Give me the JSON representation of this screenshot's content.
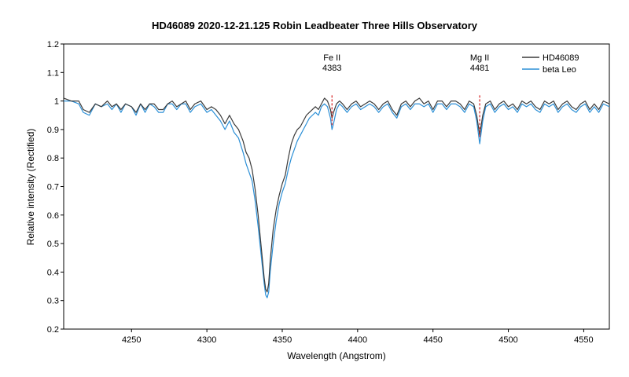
{
  "chart_data": {
    "type": "line",
    "title": "HD46089  2020-12-21.125  Robin  Leadbeater  Three Hills Observatory",
    "xlabel": "Wavelength (Angstrom)",
    "ylabel": "Relative intensity (Rectified)",
    "xlim": [
      4205,
      4567
    ],
    "ylim": [
      0.2,
      1.2
    ],
    "xticks": [
      4250,
      4300,
      4350,
      4400,
      4450,
      4500,
      4550
    ],
    "yticks": [
      0.2,
      0.3,
      0.4,
      0.5,
      0.6,
      0.7,
      0.8,
      0.9,
      1,
      1.1,
      1.2
    ],
    "grid": false,
    "legend_position": "top-right",
    "annotations": [
      {
        "line1": "Fe II",
        "line2": "4383",
        "x": 4383,
        "color": "#d62020"
      },
      {
        "line1": "Mg II",
        "line2": "4481",
        "x": 4481,
        "color": "#d62020"
      }
    ],
    "series": [
      {
        "name": "HD46089",
        "color": "#3a3a3a",
        "points": [
          [
            4205,
            1.01
          ],
          [
            4210,
            1.0
          ],
          [
            4215,
            1.0
          ],
          [
            4218,
            0.97
          ],
          [
            4222,
            0.96
          ],
          [
            4226,
            0.99
          ],
          [
            4230,
            0.98
          ],
          [
            4234,
            1.0
          ],
          [
            4237,
            0.98
          ],
          [
            4240,
            0.99
          ],
          [
            4243,
            0.97
          ],
          [
            4246,
            0.99
          ],
          [
            4250,
            0.98
          ],
          [
            4253,
            0.96
          ],
          [
            4256,
            0.99
          ],
          [
            4259,
            0.97
          ],
          [
            4262,
            0.99
          ],
          [
            4265,
            0.99
          ],
          [
            4268,
            0.97
          ],
          [
            4271,
            0.97
          ],
          [
            4274,
            0.99
          ],
          [
            4277,
            1.0
          ],
          [
            4280,
            0.98
          ],
          [
            4283,
            0.99
          ],
          [
            4286,
            1.0
          ],
          [
            4289,
            0.97
          ],
          [
            4292,
            0.99
          ],
          [
            4296,
            1.0
          ],
          [
            4300,
            0.97
          ],
          [
            4303,
            0.98
          ],
          [
            4306,
            0.97
          ],
          [
            4309,
            0.95
          ],
          [
            4312,
            0.92
          ],
          [
            4315,
            0.95
          ],
          [
            4318,
            0.92
          ],
          [
            4321,
            0.9
          ],
          [
            4324,
            0.86
          ],
          [
            4326,
            0.82
          ],
          [
            4328,
            0.8
          ],
          [
            4330,
            0.76
          ],
          [
            4332,
            0.69
          ],
          [
            4334,
            0.6
          ],
          [
            4336,
            0.49
          ],
          [
            4338,
            0.38
          ],
          [
            4339,
            0.34
          ],
          [
            4340,
            0.33
          ],
          [
            4341,
            0.36
          ],
          [
            4342,
            0.44
          ],
          [
            4344,
            0.55
          ],
          [
            4346,
            0.62
          ],
          [
            4348,
            0.67
          ],
          [
            4350,
            0.71
          ],
          [
            4352,
            0.74
          ],
          [
            4354,
            0.8
          ],
          [
            4356,
            0.85
          ],
          [
            4358,
            0.88
          ],
          [
            4360,
            0.9
          ],
          [
            4362,
            0.91
          ],
          [
            4364,
            0.93
          ],
          [
            4366,
            0.95
          ],
          [
            4368,
            0.96
          ],
          [
            4370,
            0.97
          ],
          [
            4372,
            0.98
          ],
          [
            4374,
            0.97
          ],
          [
            4376,
            0.99
          ],
          [
            4378,
            1.01
          ],
          [
            4380,
            1.0
          ],
          [
            4382,
            0.97
          ],
          [
            4383,
            0.94
          ],
          [
            4384,
            0.96
          ],
          [
            4386,
            0.99
          ],
          [
            4388,
            1.0
          ],
          [
            4390,
            0.99
          ],
          [
            4393,
            0.97
          ],
          [
            4396,
            0.99
          ],
          [
            4399,
            1.0
          ],
          [
            4402,
            0.98
          ],
          [
            4405,
            0.99
          ],
          [
            4408,
            1.0
          ],
          [
            4411,
            0.99
          ],
          [
            4414,
            0.97
          ],
          [
            4417,
            0.99
          ],
          [
            4420,
            1.0
          ],
          [
            4423,
            0.97
          ],
          [
            4426,
            0.95
          ],
          [
            4429,
            0.99
          ],
          [
            4432,
            1.0
          ],
          [
            4435,
            0.98
          ],
          [
            4438,
            1.0
          ],
          [
            4441,
            1.01
          ],
          [
            4444,
            0.99
          ],
          [
            4447,
            1.0
          ],
          [
            4450,
            0.97
          ],
          [
            4453,
            1.0
          ],
          [
            4456,
            1.0
          ],
          [
            4459,
            0.98
          ],
          [
            4462,
            1.0
          ],
          [
            4465,
            1.0
          ],
          [
            4468,
            0.99
          ],
          [
            4471,
            0.97
          ],
          [
            4474,
            1.0
          ],
          [
            4477,
            0.99
          ],
          [
            4479,
            0.95
          ],
          [
            4481,
            0.88
          ],
          [
            4483,
            0.95
          ],
          [
            4485,
            0.99
          ],
          [
            4488,
            1.0
          ],
          [
            4491,
            0.97
          ],
          [
            4494,
            0.99
          ],
          [
            4497,
            1.0
          ],
          [
            4500,
            0.98
          ],
          [
            4503,
            0.99
          ],
          [
            4506,
            0.97
          ],
          [
            4509,
            1.0
          ],
          [
            4512,
            0.99
          ],
          [
            4515,
            1.0
          ],
          [
            4518,
            0.98
          ],
          [
            4521,
            0.97
          ],
          [
            4524,
            1.0
          ],
          [
            4527,
            0.99
          ],
          [
            4530,
            1.0
          ],
          [
            4533,
            0.97
          ],
          [
            4536,
            0.99
          ],
          [
            4539,
            1.0
          ],
          [
            4542,
            0.98
          ],
          [
            4545,
            0.97
          ],
          [
            4548,
            0.99
          ],
          [
            4551,
            1.0
          ],
          [
            4554,
            0.97
          ],
          [
            4557,
            0.99
          ],
          [
            4560,
            0.97
          ],
          [
            4563,
            1.0
          ],
          [
            4567,
            0.99
          ]
        ]
      },
      {
        "name": "beta Leo",
        "color": "#2b8fd6",
        "points": [
          [
            4205,
            1.0
          ],
          [
            4210,
            1.0
          ],
          [
            4215,
            0.99
          ],
          [
            4218,
            0.96
          ],
          [
            4222,
            0.95
          ],
          [
            4226,
            0.99
          ],
          [
            4230,
            0.98
          ],
          [
            4234,
            0.99
          ],
          [
            4237,
            0.97
          ],
          [
            4240,
            0.99
          ],
          [
            4243,
            0.96
          ],
          [
            4246,
            0.99
          ],
          [
            4250,
            0.98
          ],
          [
            4253,
            0.95
          ],
          [
            4256,
            0.99
          ],
          [
            4259,
            0.96
          ],
          [
            4262,
            0.99
          ],
          [
            4265,
            0.98
          ],
          [
            4268,
            0.96
          ],
          [
            4271,
            0.96
          ],
          [
            4274,
            0.99
          ],
          [
            4277,
            0.99
          ],
          [
            4280,
            0.97
          ],
          [
            4283,
            0.99
          ],
          [
            4286,
            0.99
          ],
          [
            4289,
            0.96
          ],
          [
            4292,
            0.98
          ],
          [
            4296,
            0.99
          ],
          [
            4300,
            0.96
          ],
          [
            4303,
            0.97
          ],
          [
            4306,
            0.95
          ],
          [
            4309,
            0.93
          ],
          [
            4312,
            0.9
          ],
          [
            4315,
            0.93
          ],
          [
            4318,
            0.89
          ],
          [
            4321,
            0.87
          ],
          [
            4324,
            0.82
          ],
          [
            4326,
            0.78
          ],
          [
            4328,
            0.75
          ],
          [
            4330,
            0.72
          ],
          [
            4332,
            0.65
          ],
          [
            4334,
            0.56
          ],
          [
            4336,
            0.46
          ],
          [
            4338,
            0.36
          ],
          [
            4339,
            0.32
          ],
          [
            4340,
            0.31
          ],
          [
            4341,
            0.33
          ],
          [
            4342,
            0.4
          ],
          [
            4344,
            0.5
          ],
          [
            4346,
            0.58
          ],
          [
            4348,
            0.64
          ],
          [
            4350,
            0.68
          ],
          [
            4352,
            0.71
          ],
          [
            4354,
            0.76
          ],
          [
            4356,
            0.8
          ],
          [
            4358,
            0.83
          ],
          [
            4360,
            0.86
          ],
          [
            4362,
            0.88
          ],
          [
            4364,
            0.9
          ],
          [
            4366,
            0.92
          ],
          [
            4368,
            0.94
          ],
          [
            4370,
            0.95
          ],
          [
            4372,
            0.96
          ],
          [
            4374,
            0.95
          ],
          [
            4376,
            0.98
          ],
          [
            4378,
            0.99
          ],
          [
            4380,
            0.98
          ],
          [
            4382,
            0.94
          ],
          [
            4383,
            0.9
          ],
          [
            4384,
            0.92
          ],
          [
            4386,
            0.97
          ],
          [
            4388,
            0.99
          ],
          [
            4390,
            0.98
          ],
          [
            4393,
            0.96
          ],
          [
            4396,
            0.98
          ],
          [
            4399,
            0.99
          ],
          [
            4402,
            0.97
          ],
          [
            4405,
            0.98
          ],
          [
            4408,
            0.99
          ],
          [
            4411,
            0.98
          ],
          [
            4414,
            0.96
          ],
          [
            4417,
            0.98
          ],
          [
            4420,
            0.99
          ],
          [
            4423,
            0.96
          ],
          [
            4426,
            0.94
          ],
          [
            4429,
            0.98
          ],
          [
            4432,
            0.99
          ],
          [
            4435,
            0.97
          ],
          [
            4438,
            0.99
          ],
          [
            4441,
            0.99
          ],
          [
            4444,
            0.98
          ],
          [
            4447,
            0.99
          ],
          [
            4450,
            0.96
          ],
          [
            4453,
            0.99
          ],
          [
            4456,
            0.99
          ],
          [
            4459,
            0.97
          ],
          [
            4462,
            0.99
          ],
          [
            4465,
            0.99
          ],
          [
            4468,
            0.98
          ],
          [
            4471,
            0.96
          ],
          [
            4474,
            0.99
          ],
          [
            4477,
            0.98
          ],
          [
            4479,
            0.93
          ],
          [
            4481,
            0.85
          ],
          [
            4483,
            0.93
          ],
          [
            4485,
            0.98
          ],
          [
            4488,
            0.99
          ],
          [
            4491,
            0.96
          ],
          [
            4494,
            0.98
          ],
          [
            4497,
            0.99
          ],
          [
            4500,
            0.97
          ],
          [
            4503,
            0.98
          ],
          [
            4506,
            0.96
          ],
          [
            4509,
            0.99
          ],
          [
            4512,
            0.98
          ],
          [
            4515,
            0.99
          ],
          [
            4518,
            0.97
          ],
          [
            4521,
            0.96
          ],
          [
            4524,
            0.99
          ],
          [
            4527,
            0.98
          ],
          [
            4530,
            0.99
          ],
          [
            4533,
            0.96
          ],
          [
            4536,
            0.98
          ],
          [
            4539,
            0.99
          ],
          [
            4542,
            0.97
          ],
          [
            4545,
            0.96
          ],
          [
            4548,
            0.98
          ],
          [
            4551,
            0.99
          ],
          [
            4554,
            0.96
          ],
          [
            4557,
            0.98
          ],
          [
            4560,
            0.96
          ],
          [
            4563,
            0.99
          ],
          [
            4567,
            0.98
          ]
        ]
      }
    ]
  }
}
